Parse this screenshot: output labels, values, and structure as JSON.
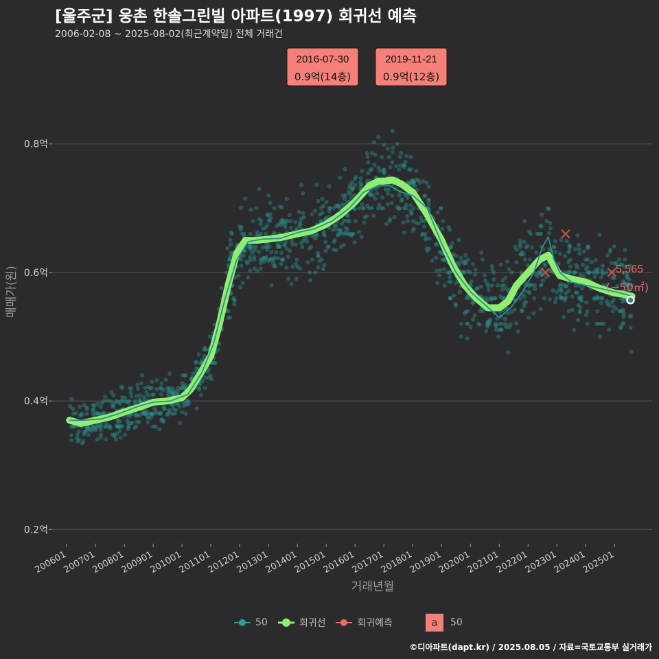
{
  "header": {
    "title": "[울주군] 웅촌 한솔그린빌 아파트(1997) 회귀선 예측",
    "subtitle": "2006-02-08 ~ 2025-08-02(최근계약일) 전체 거래건"
  },
  "footer": {
    "credit": "©디아파트(dapt.kr) / 2025.08.05 / 자료=국토교통부 실거래가"
  },
  "legend": {
    "items": [
      {
        "label": "50",
        "color": "#2aa198"
      },
      {
        "label": "회귀선",
        "color": "#90ee70"
      },
      {
        "label": "회귀예측",
        "color": "#f06a66"
      }
    ],
    "text_box_glyph": "a",
    "text_box_label": "50"
  },
  "colors": {
    "background": "#2b2a2c",
    "grid": "#555555",
    "scatter": "#2a8f8a",
    "regression": "#90ee70",
    "prediction": "#e05550",
    "callout_bg": "#f57f79"
  },
  "chart_data": {
    "type": "scatter",
    "title": "[울주군] 웅촌 한솔그린빌 아파트(1997) 회귀선 예측",
    "xlabel": "거래년월",
    "ylabel": "매매가(원)",
    "x_unit": "year",
    "xlim": [
      2005.5,
      2026.3
    ],
    "ylim": [
      0.18,
      0.96
    ],
    "y_ticks": [
      {
        "value": 0.2,
        "label": "0.2억"
      },
      {
        "value": 0.4,
        "label": "0.4억"
      },
      {
        "value": 0.6,
        "label": "0.6억"
      },
      {
        "value": 0.8,
        "label": "0.8억"
      }
    ],
    "x_ticks": [
      {
        "value": 2006,
        "label": "200601"
      },
      {
        "value": 2007,
        "label": "200701"
      },
      {
        "value": 2008,
        "label": "200801"
      },
      {
        "value": 2009,
        "label": "200901"
      },
      {
        "value": 2010,
        "label": "201001"
      },
      {
        "value": 2011,
        "label": "201101"
      },
      {
        "value": 2012,
        "label": "201201"
      },
      {
        "value": 2013,
        "label": "201301"
      },
      {
        "value": 2014,
        "label": "201401"
      },
      {
        "value": 2015,
        "label": "201501"
      },
      {
        "value": 2016,
        "label": "201601"
      },
      {
        "value": 2017,
        "label": "201701"
      },
      {
        "value": 2018,
        "label": "201801"
      },
      {
        "value": 2019,
        "label": "201901"
      },
      {
        "value": 2020,
        "label": "202001"
      },
      {
        "value": 2021,
        "label": "202101"
      },
      {
        "value": 2022,
        "label": "202201"
      },
      {
        "value": 2023,
        "label": "202301"
      },
      {
        "value": 2024,
        "label": "202401"
      },
      {
        "value": 2025,
        "label": "202501"
      }
    ],
    "series": [
      {
        "name": "회귀선",
        "style": "thick-line",
        "points": [
          [
            2006.1,
            0.37
          ],
          [
            2006.5,
            0.365
          ],
          [
            2007.0,
            0.37
          ],
          [
            2007.5,
            0.375
          ],
          [
            2008.0,
            0.383
          ],
          [
            2008.5,
            0.39
          ],
          [
            2009.0,
            0.398
          ],
          [
            2009.5,
            0.4
          ],
          [
            2010.0,
            0.405
          ],
          [
            2010.3,
            0.418
          ],
          [
            2010.6,
            0.44
          ],
          [
            2011.0,
            0.47
          ],
          [
            2011.3,
            0.52
          ],
          [
            2011.6,
            0.58
          ],
          [
            2011.9,
            0.63
          ],
          [
            2012.2,
            0.65
          ],
          [
            2012.6,
            0.65
          ],
          [
            2013.0,
            0.652
          ],
          [
            2013.5,
            0.655
          ],
          [
            2014.0,
            0.66
          ],
          [
            2014.5,
            0.665
          ],
          [
            2015.0,
            0.675
          ],
          [
            2015.5,
            0.69
          ],
          [
            2016.0,
            0.71
          ],
          [
            2016.5,
            0.735
          ],
          [
            2016.8,
            0.742
          ],
          [
            2017.0,
            0.742
          ],
          [
            2017.3,
            0.744
          ],
          [
            2017.6,
            0.738
          ],
          [
            2018.0,
            0.725
          ],
          [
            2018.5,
            0.69
          ],
          [
            2019.0,
            0.65
          ],
          [
            2019.4,
            0.61
          ],
          [
            2019.8,
            0.58
          ],
          [
            2020.2,
            0.56
          ],
          [
            2020.6,
            0.545
          ],
          [
            2021.0,
            0.545
          ],
          [
            2021.3,
            0.555
          ],
          [
            2021.6,
            0.58
          ],
          [
            2022.0,
            0.6
          ],
          [
            2022.4,
            0.62
          ],
          [
            2022.7,
            0.627
          ],
          [
            2022.9,
            0.61
          ],
          [
            2023.1,
            0.595
          ],
          [
            2023.5,
            0.59
          ],
          [
            2024.0,
            0.585
          ],
          [
            2024.5,
            0.575
          ],
          [
            2025.0,
            0.568
          ],
          [
            2025.3,
            0.566
          ],
          [
            2025.6,
            0.563
          ]
        ]
      },
      {
        "name": "50",
        "style": "thin-line",
        "points": [
          [
            2006.1,
            0.37
          ],
          [
            2006.6,
            0.37
          ],
          [
            2007.2,
            0.372
          ],
          [
            2007.8,
            0.38
          ],
          [
            2008.5,
            0.392
          ],
          [
            2009.0,
            0.398
          ],
          [
            2009.6,
            0.4
          ],
          [
            2010.2,
            0.41
          ],
          [
            2010.7,
            0.445
          ],
          [
            2011.1,
            0.49
          ],
          [
            2011.5,
            0.56
          ],
          [
            2011.9,
            0.62
          ],
          [
            2012.3,
            0.648
          ],
          [
            2012.8,
            0.652
          ],
          [
            2013.4,
            0.653
          ],
          [
            2014.0,
            0.662
          ],
          [
            2014.6,
            0.668
          ],
          [
            2015.2,
            0.68
          ],
          [
            2015.8,
            0.7
          ],
          [
            2016.3,
            0.725
          ],
          [
            2016.8,
            0.735
          ],
          [
            2017.2,
            0.735
          ],
          [
            2017.6,
            0.725
          ],
          [
            2018.0,
            0.72
          ],
          [
            2018.5,
            0.7
          ],
          [
            2019.0,
            0.645
          ],
          [
            2019.5,
            0.6
          ],
          [
            2020.0,
            0.57
          ],
          [
            2020.5,
            0.55
          ],
          [
            2021.0,
            0.53
          ],
          [
            2021.4,
            0.545
          ],
          [
            2021.8,
            0.57
          ],
          [
            2022.2,
            0.6
          ],
          [
            2022.5,
            0.64
          ],
          [
            2022.7,
            0.655
          ],
          [
            2022.9,
            0.62
          ],
          [
            2023.1,
            0.6
          ],
          [
            2023.5,
            0.585
          ],
          [
            2024.0,
            0.58
          ],
          [
            2024.5,
            0.575
          ],
          [
            2025.0,
            0.57
          ],
          [
            2025.4,
            0.566
          ],
          [
            2025.6,
            0.562
          ]
        ]
      },
      {
        "name": "회귀예측",
        "style": "x-marker",
        "points": [
          [
            2022.6,
            0.6
          ],
          [
            2023.3,
            0.66
          ],
          [
            2024.9,
            0.6
          ]
        ]
      }
    ],
    "scatter_note": "individual transactions (approximate dense cloud generated around the trend)",
    "scatter_seed": 7,
    "last_point": {
      "x": 2025.55,
      "y": 0.557
    },
    "price_label": {
      "value": "5,565",
      "sub": "(~50㎡)"
    },
    "callouts": [
      {
        "date": "2016-07-30",
        "text": "0.9억(14층)"
      },
      {
        "date": "2019-11-21",
        "text": "0.9억(12층)"
      }
    ]
  }
}
